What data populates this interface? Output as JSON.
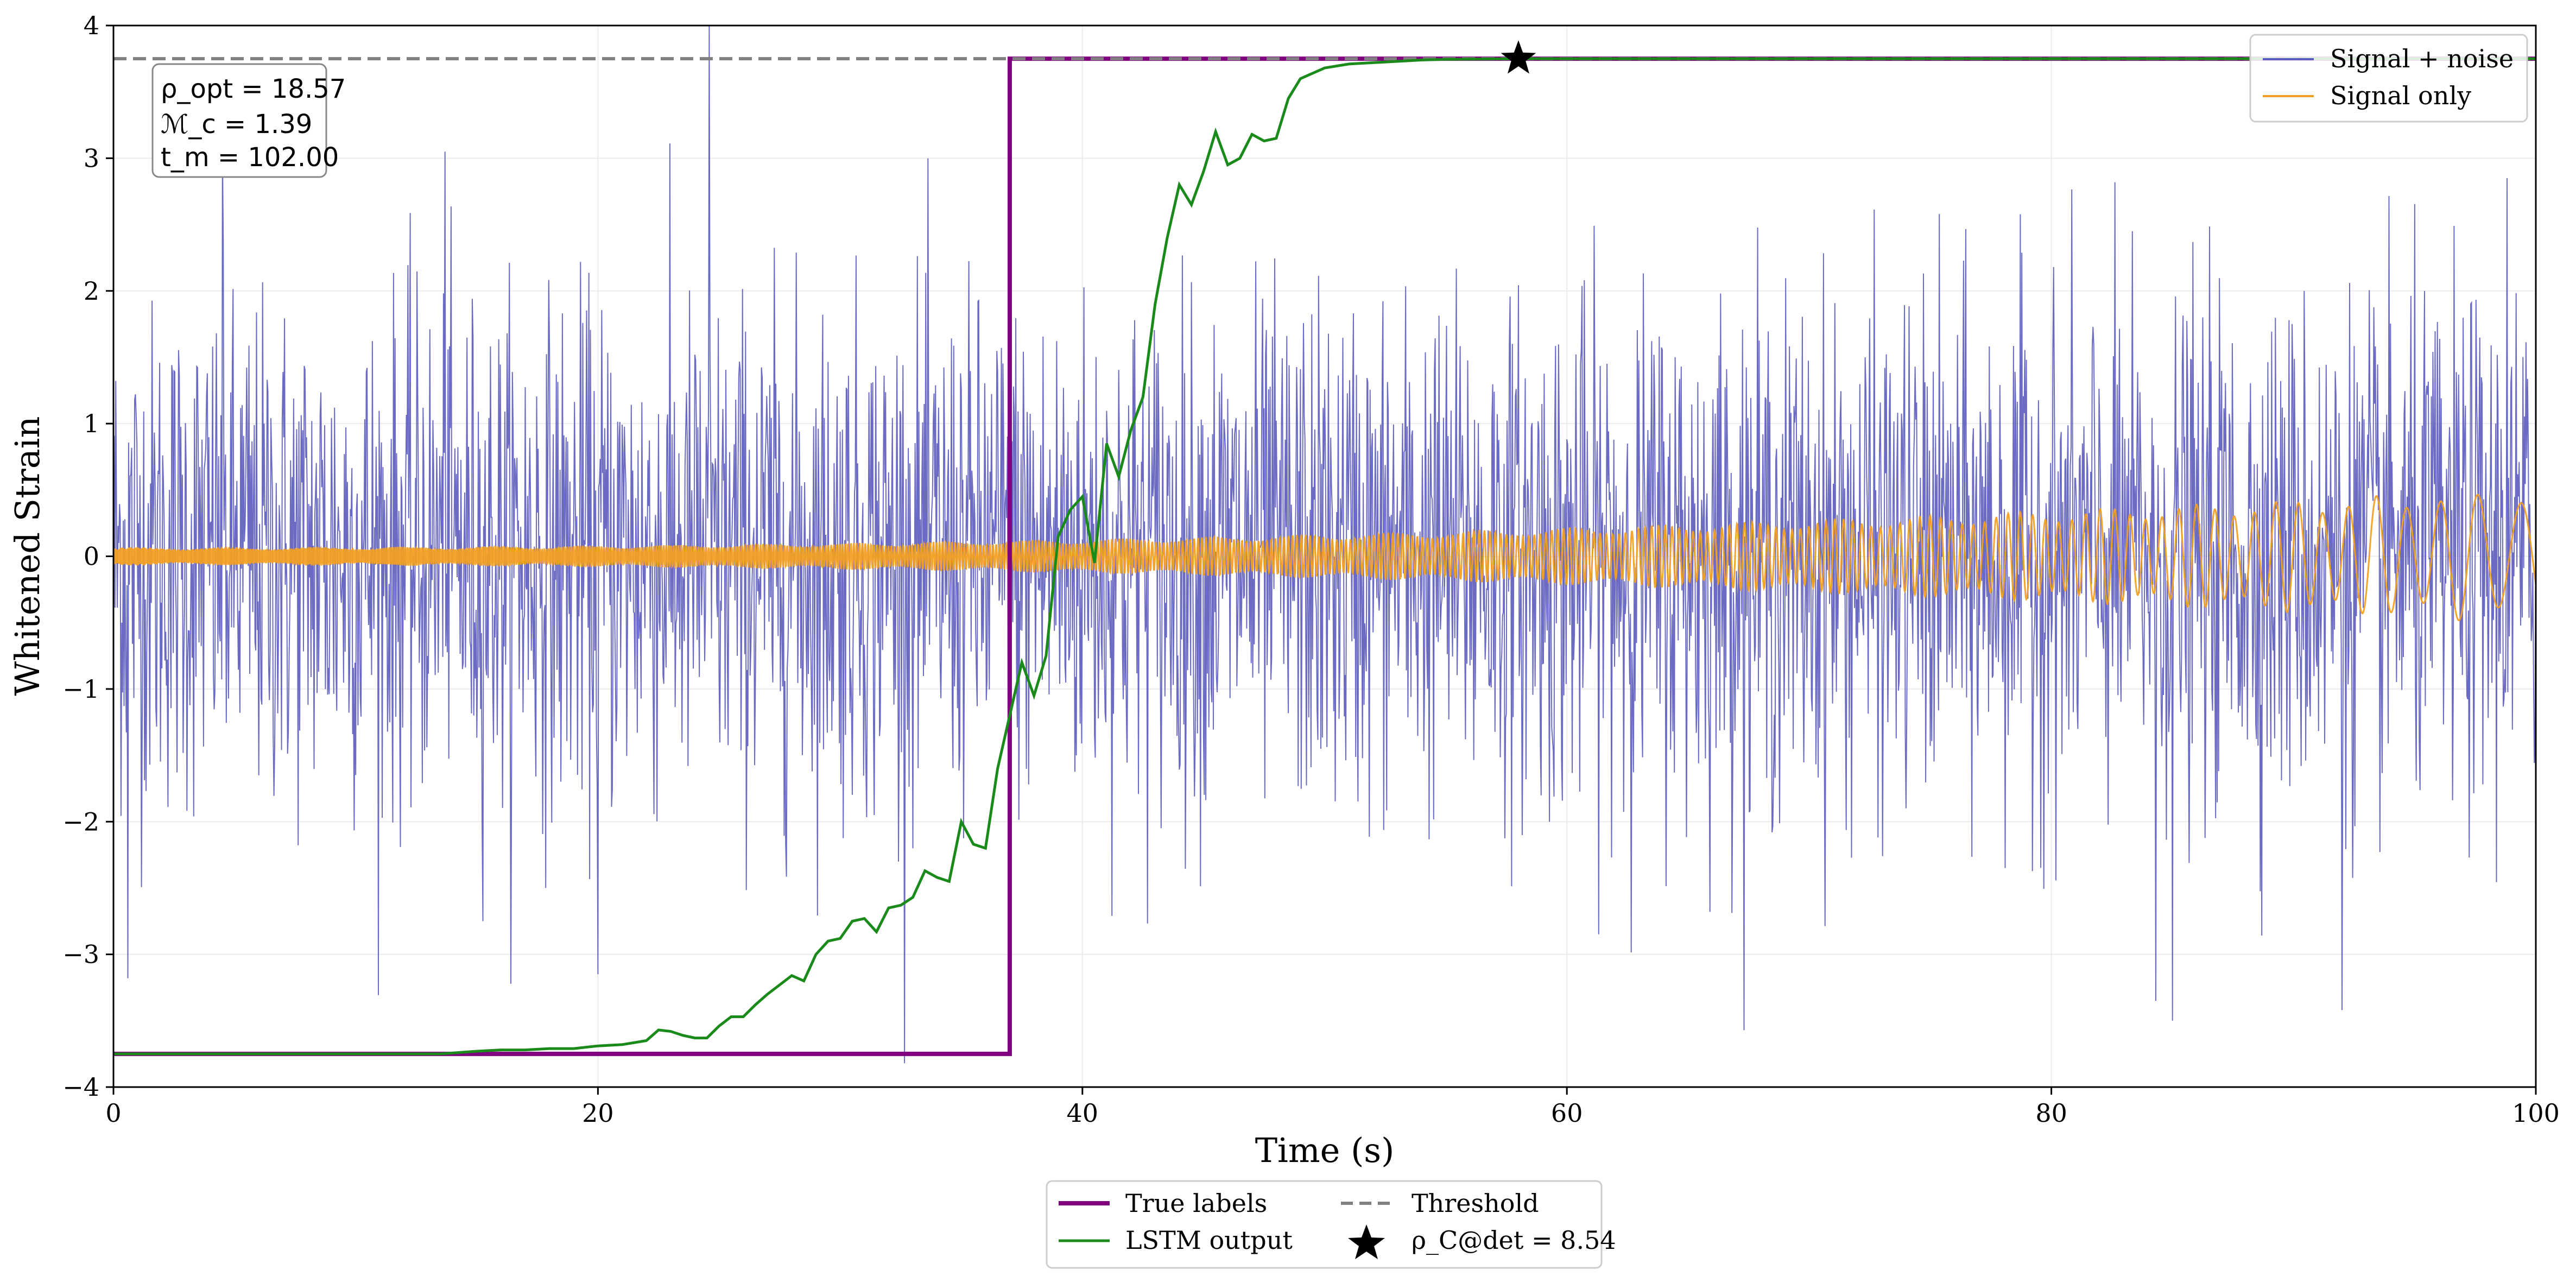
{
  "chart_data": {
    "type": "line",
    "xlabel": "Time (s)",
    "ylabel": "Whitened Strain",
    "xlim": [
      0,
      100
    ],
    "ylim": [
      -4,
      4
    ],
    "grid": true,
    "x_ticks": [
      0,
      20,
      40,
      60,
      80,
      100
    ],
    "y_ticks": [
      -4,
      -3,
      -2,
      -1,
      0,
      1,
      2,
      3,
      4
    ],
    "x_tick_labels": [
      "0",
      "20",
      "40",
      "60",
      "80",
      "100"
    ],
    "y_tick_labels": [
      "−4",
      "−3",
      "−2",
      "−1",
      "0",
      "1",
      "2",
      "3",
      "4"
    ],
    "colors": {
      "signal_noise": "#5b5bbd",
      "signal_only": "#f2a024",
      "true_labels": "#800080",
      "lstm": "#1a8a1a",
      "threshold": "#808080",
      "star": "#000000"
    },
    "annotation": {
      "rho_opt": "ρ_opt = 18.57",
      "mc": "ℳ_c = 1.39",
      "tm": "t_m = 102.00"
    },
    "legend_top_right": {
      "signal_noise": "Signal + noise",
      "signal_only": "Signal only"
    },
    "legend_bottom": {
      "true_labels": "True labels",
      "lstm": "LSTM output",
      "threshold": "Threshold",
      "detection": "ρ_C@det = 8.54"
    },
    "series": {
      "threshold": {
        "name": "Threshold",
        "y": 3.75
      },
      "true_labels": {
        "name": "True labels",
        "x": [
          0,
          37,
          37,
          100
        ],
        "y": [
          -3.75,
          -3.75,
          3.75,
          3.75
        ]
      },
      "lstm_output": {
        "name": "LSTM output",
        "x": [
          0,
          13.5,
          15,
          16,
          17,
          18,
          19,
          20,
          21,
          22,
          22.5,
          23,
          23.5,
          24,
          24.5,
          25,
          25.5,
          26,
          26.5,
          27,
          27.5,
          28,
          28.5,
          29,
          29.5,
          30,
          30.5,
          31,
          31.5,
          32,
          32.5,
          33,
          33.5,
          34,
          34.5,
          35,
          35.5,
          36,
          36.5,
          37,
          37.5,
          38,
          38.5,
          39,
          39.5,
          40,
          40.5,
          41,
          41.5,
          42,
          42.5,
          43,
          43.5,
          44,
          44.5,
          45,
          45.5,
          46,
          46.5,
          47,
          47.5,
          48,
          48.5,
          49,
          50,
          51,
          52,
          53,
          54,
          55,
          58,
          100
        ],
        "y": [
          -3.75,
          -3.75,
          -3.73,
          -3.72,
          -3.72,
          -3.71,
          -3.71,
          -3.69,
          -3.68,
          -3.65,
          -3.57,
          -3.58,
          -3.61,
          -3.63,
          -3.63,
          -3.54,
          -3.47,
          -3.47,
          -3.38,
          -3.3,
          -3.23,
          -3.16,
          -3.2,
          -3.0,
          -2.9,
          -2.88,
          -2.75,
          -2.73,
          -2.83,
          -2.65,
          -2.63,
          -2.57,
          -2.37,
          -2.42,
          -2.45,
          -2.0,
          -2.17,
          -2.2,
          -1.6,
          -1.2,
          -0.8,
          -1.05,
          -0.75,
          0.15,
          0.35,
          0.45,
          -0.05,
          0.85,
          0.6,
          0.95,
          1.2,
          1.9,
          2.4,
          2.8,
          2.65,
          2.9,
          3.2,
          2.95,
          3.0,
          3.18,
          3.13,
          3.15,
          3.45,
          3.6,
          3.68,
          3.71,
          3.72,
          3.73,
          3.74,
          3.745,
          3.75,
          3.75
        ]
      },
      "detection_point": {
        "name": "ρ_C@det = 8.54",
        "x": 58,
        "y": 3.75
      },
      "signal_noise": {
        "name": "Signal + noise",
        "description_of_shape": "dense white-noise-like strain, std ~1, spikes to ~4",
        "std": 0.95,
        "notable_peaks": [
          [
            24.6,
            4.0
          ],
          [
            20.0,
            -3.15
          ],
          [
            0.6,
            -3.18
          ],
          [
            85.0,
            -3.5
          ],
          [
            84.3,
            -3.35
          ],
          [
            92.0,
            -3.42
          ],
          [
            98.8,
            2.85
          ],
          [
            4.5,
            3.05
          ],
          [
            13.7,
            3.05
          ]
        ]
      },
      "signal_only": {
        "name": "Signal only",
        "description_of_shape": "chirp waveform growing in amplitude and frequency decreasing spacing",
        "amplitude_start": 0.06,
        "amplitude_end": 0.45
      }
    }
  }
}
